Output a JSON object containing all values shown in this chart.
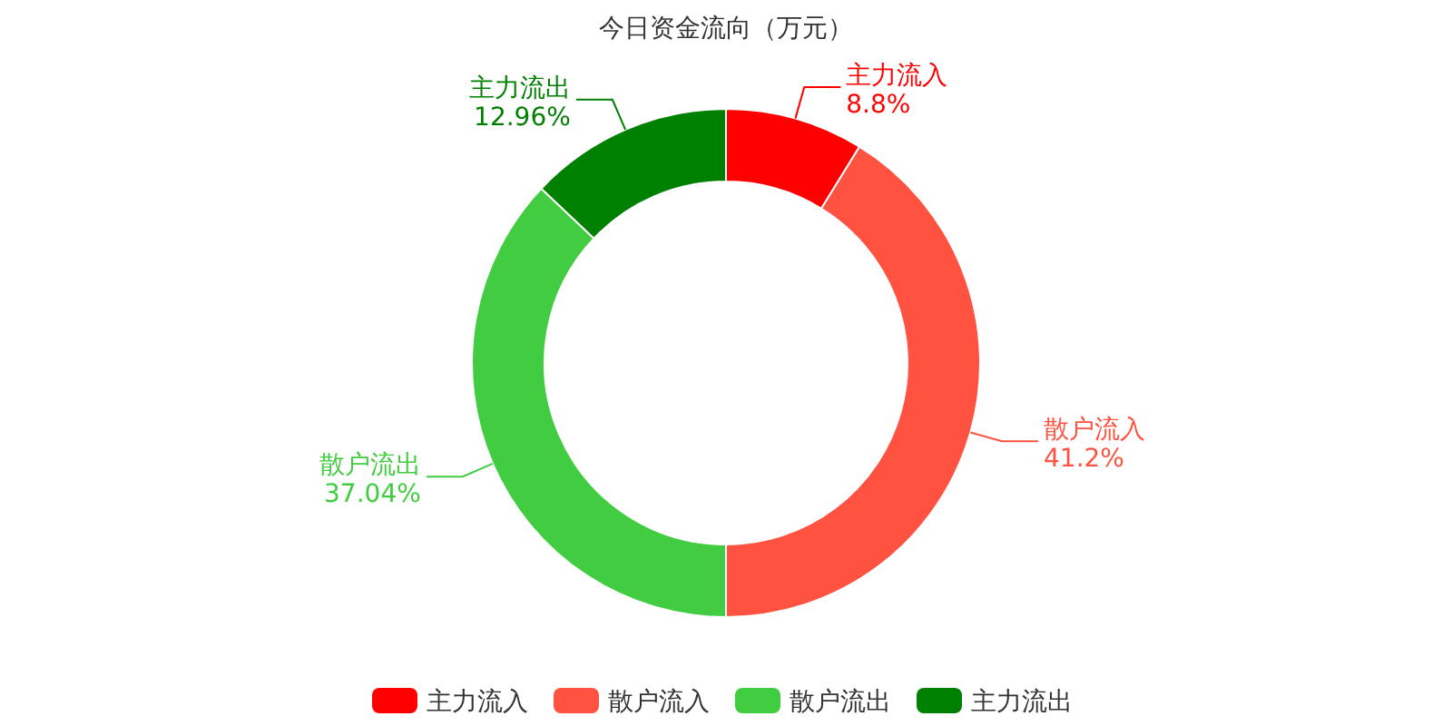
{
  "chart_data": {
    "type": "donut",
    "title": "今日资金流向（万元）",
    "categories": [
      "主力流入",
      "散户流入",
      "散户流出",
      "主力流出"
    ],
    "values": [
      8.8,
      41.2,
      37.04,
      12.96
    ],
    "colors": [
      "#ff0000",
      "#ff5240",
      "#42cc42",
      "#008000"
    ],
    "value_labels": [
      "8.8%",
      "41.2%",
      "37.04%",
      "12.96%"
    ],
    "legend": "bottom"
  }
}
